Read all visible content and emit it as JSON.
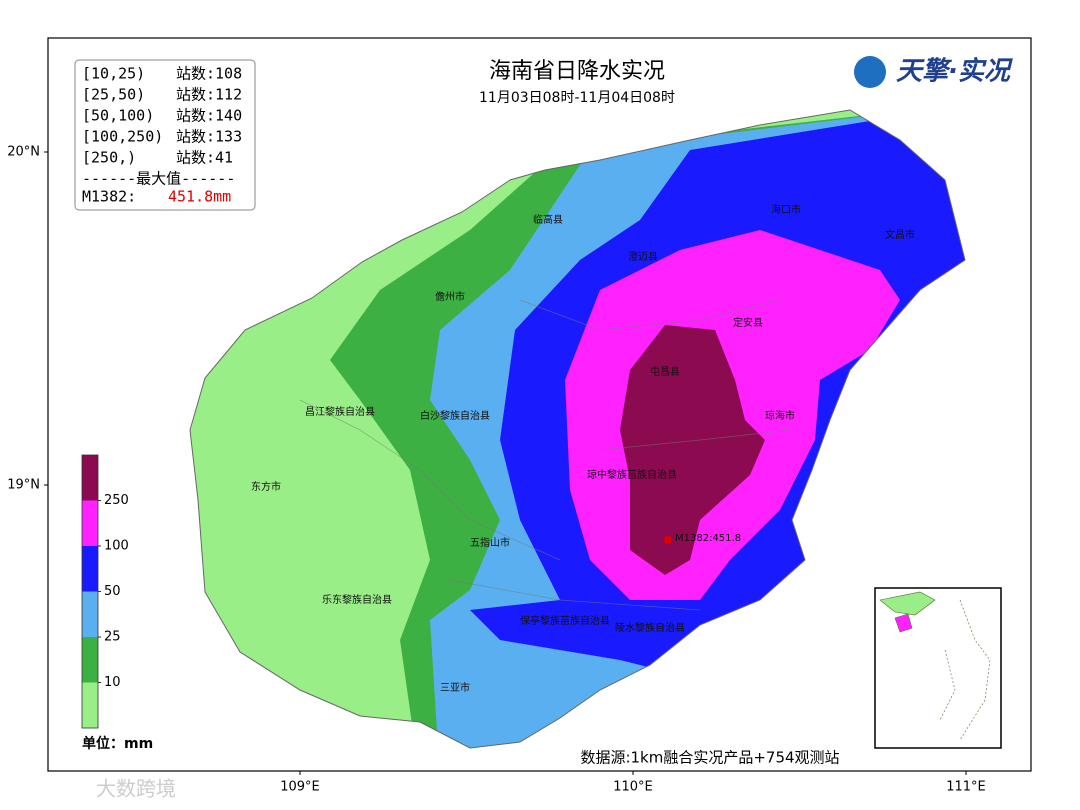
{
  "header": {
    "title": "海南省日降水实况",
    "subtitle": "11月03日08时-11月04日08时",
    "logo": "天擎·实况"
  },
  "stats": {
    "rows": [
      {
        "range": "[10,25)",
        "stations": "站数:108"
      },
      {
        "range": "[25,50)",
        "stations": "站数:112"
      },
      {
        "range": "[50,100)",
        "stations": "站数:140"
      },
      {
        "range": "[100,250)",
        "stations": "站数:133"
      },
      {
        "range": "[250,)",
        "stations": "站数:41"
      }
    ],
    "max_header": "------最大值------",
    "max_station": "M1382:",
    "max_value": "451.8mm"
  },
  "legend": {
    "unit": "单位：mm",
    "levels": [
      250,
      100,
      50,
      25,
      10
    ],
    "colors": [
      "#8b0a50",
      "#ff22ff",
      "#1a1aff",
      "#5aaff0",
      "#3cb043",
      "#9aee88"
    ]
  },
  "axes": {
    "lat_labels": [
      "20°N",
      "19°N"
    ],
    "lon_labels": [
      "109°E",
      "110°E",
      "111°E"
    ]
  },
  "places": [
    "临高县",
    "海口市",
    "文昌市",
    "澄迈县",
    "儋州市",
    "定安县",
    "屯昌县",
    "昌江黎族自治县",
    "白沙黎族自治县",
    "琼海市",
    "东方市",
    "琼中黎族苗族自治县",
    "五指山市",
    "乐东黎族自治县",
    "保亭黎族苗族自治县",
    "陵水黎族自治县",
    "三亚市"
  ],
  "max_marker": "M1382:451.8",
  "source": "数据源:1km融合实况产品+754观测站",
  "watermark": "大数跨境"
}
